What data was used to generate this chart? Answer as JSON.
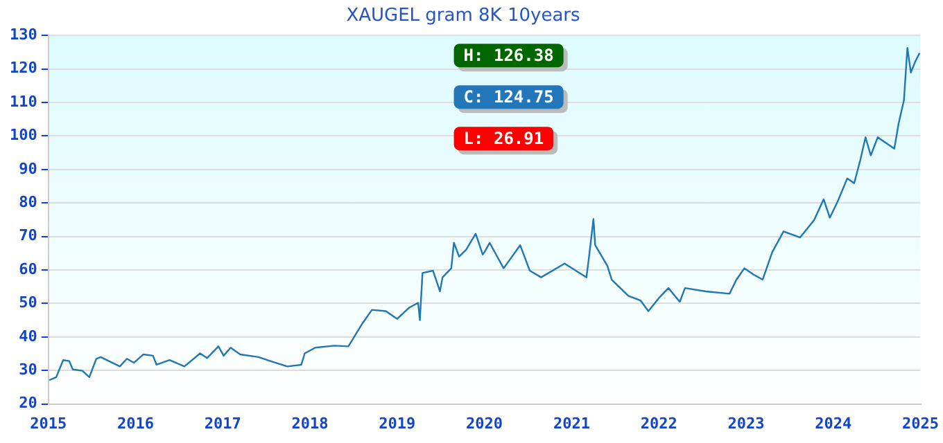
{
  "chart_data": {
    "type": "line",
    "title": "XAUGEL gram 8K 10years",
    "x": [
      2015.01,
      2015.09,
      2015.17,
      2015.24,
      2015.28,
      2015.39,
      2015.47,
      2015.55,
      2015.6,
      2015.71,
      2015.82,
      2015.9,
      2015.98,
      2016.09,
      2016.2,
      2016.24,
      2016.39,
      2016.56,
      2016.74,
      2016.82,
      2016.95,
      2017.01,
      2017.09,
      2017.2,
      2017.41,
      2017.57,
      2017.74,
      2017.9,
      2017.94,
      2018.06,
      2018.28,
      2018.44,
      2018.52,
      2018.6,
      2018.71,
      2018.87,
      2019.0,
      2019.14,
      2019.24,
      2019.26,
      2019.29,
      2019.41,
      2019.49,
      2019.52,
      2019.62,
      2019.65,
      2019.71,
      2019.79,
      2019.9,
      2019.98,
      2020.0,
      2020.06,
      2020.22,
      2020.41,
      2020.52,
      2020.65,
      2020.92,
      2021.17,
      2021.2,
      2021.25,
      2021.27,
      2021.41,
      2021.46,
      2021.65,
      2021.79,
      2021.88,
      2022.0,
      2022.11,
      2022.24,
      2022.3,
      2022.54,
      2022.81,
      2022.89,
      2022.98,
      2023.08,
      2023.19,
      2023.3,
      2023.43,
      2023.62,
      2023.78,
      2023.89,
      2023.96,
      2024.05,
      2024.16,
      2024.24,
      2024.31,
      2024.37,
      2024.43,
      2024.51,
      2024.7,
      2024.75,
      2024.81,
      2024.85,
      2024.89,
      2024.94,
      2024.99
    ],
    "series": [
      {
        "color": "#1f77b4",
        "values": [
          27.1,
          28,
          33.1,
          32.8,
          30.3,
          29.9,
          28,
          33.5,
          34,
          32.6,
          31.2,
          33.5,
          32.3,
          34.8,
          34.4,
          31.7,
          33.1,
          31.2,
          35.1,
          33.7,
          37.2,
          34.4,
          36.8,
          34.8,
          34,
          32.6,
          31.2,
          31.7,
          35.1,
          36.8,
          37.4,
          37.2,
          40.6,
          44,
          48.1,
          47.7,
          45.4,
          48.8,
          50.2,
          45,
          59.1,
          59.8,
          53.6,
          57.8,
          60.5,
          68.1,
          64,
          66,
          70.8,
          64.6,
          65.3,
          68.1,
          60.5,
          67.4,
          59.8,
          57.8,
          61.9,
          57.8,
          64,
          75.2,
          67.4,
          61.2,
          57.1,
          52.3,
          50.9,
          47.7,
          51.6,
          54.6,
          50.5,
          54.6,
          53.6,
          52.9,
          57.1,
          60.5,
          58.7,
          57.1,
          65.3,
          71.5,
          69.7,
          74.9,
          81.1,
          75.6,
          80.4,
          87.3,
          85.9,
          92.8,
          99.6,
          94.2,
          99.6,
          96.2,
          103.8,
          110.6,
          126.3,
          118.9,
          122.2,
          124.75
        ]
      }
    ],
    "xlim": [
      2015,
      2025
    ],
    "xticks": [
      2015,
      2016,
      2017,
      2018,
      2019,
      2020,
      2021,
      2022,
      2023,
      2024,
      2025
    ],
    "ylim": [
      20,
      130
    ],
    "yticks": [
      20,
      30,
      40,
      50,
      60,
      70,
      80,
      90,
      100,
      110,
      120,
      130
    ],
    "grid": "y",
    "legend": false,
    "marker": "none",
    "line_style": "solid",
    "annotations": [
      "H: 126.38",
      "C: 124.75",
      "L: 26.91"
    ]
  }
}
